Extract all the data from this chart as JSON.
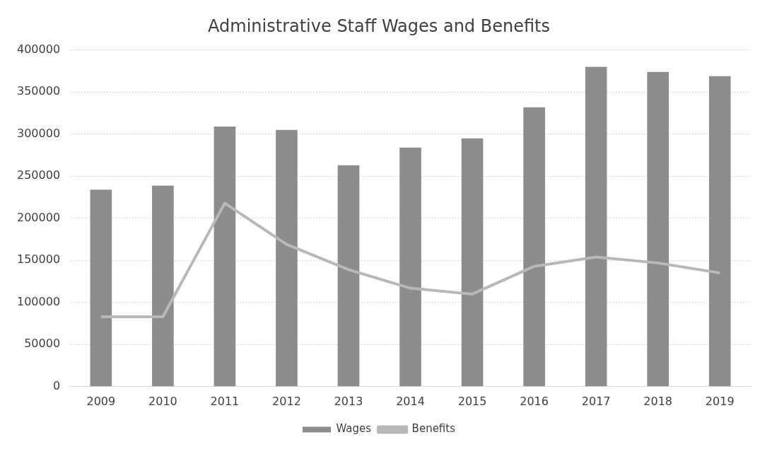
{
  "chart_data": {
    "type": "bar",
    "title": "Administrative Staff Wages and Benefits",
    "categories": [
      "2009",
      "2010",
      "2011",
      "2012",
      "2013",
      "2014",
      "2015",
      "2016",
      "2017",
      "2018",
      "2019"
    ],
    "series": [
      {
        "name": "Wages",
        "color": "#8c8c8c",
        "values": [
          234000,
          239000,
          309000,
          305000,
          263000,
          284000,
          295000,
          332000,
          380000,
          374000,
          369000
        ]
      },
      {
        "name": "Benefits",
        "type": "line",
        "color": "#b8b8b8",
        "values": [
          83000,
          83000,
          218000,
          169000,
          139000,
          117000,
          110000,
          143000,
          154000,
          147000,
          135000
        ]
      }
    ],
    "ylim": [
      0,
      400000
    ],
    "yticks": [
      0,
      50000,
      100000,
      150000,
      200000,
      250000,
      300000,
      350000,
      400000
    ],
    "grid": "y",
    "legend": "bottom",
    "marker": "none"
  }
}
